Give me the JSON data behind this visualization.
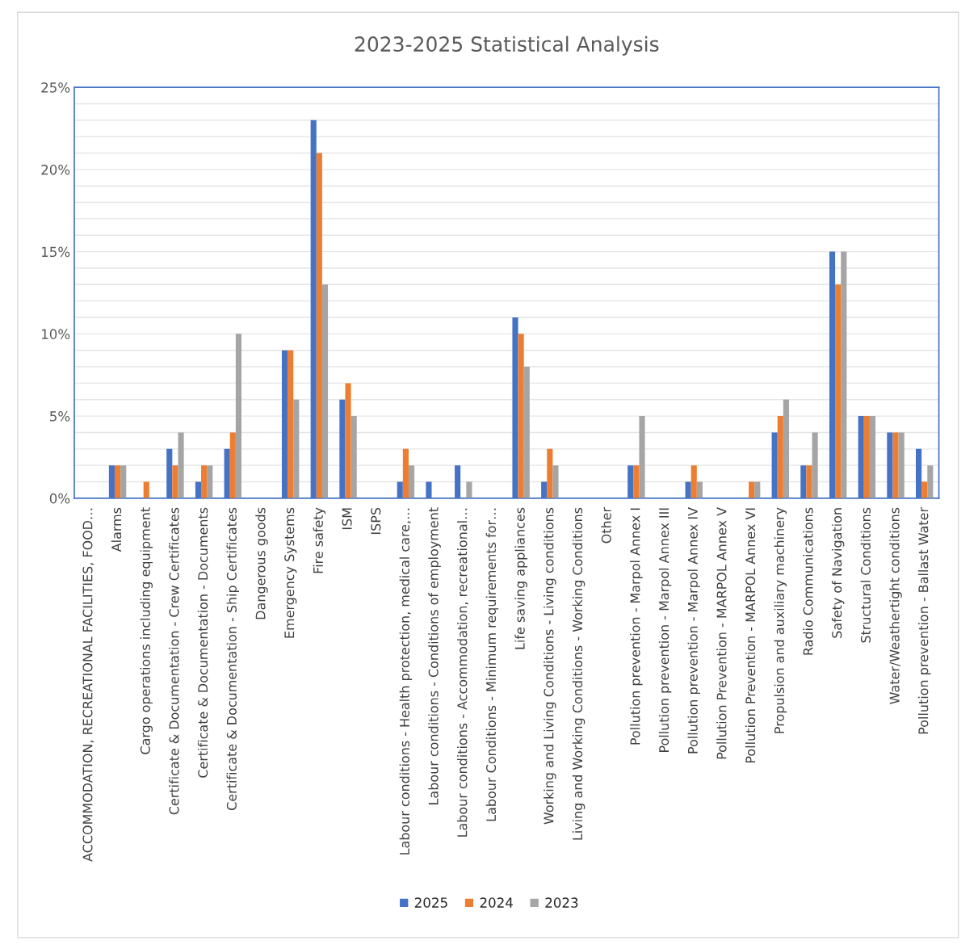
{
  "chart_data": {
    "type": "bar",
    "title": "2023-2025 Statistical Analysis",
    "categories": [
      "ACCOMMODATION, RECREATIONAL FACILITIES, FOOD…",
      "Alarms",
      "Cargo operations including equipment",
      "Certificate & Documentation - Crew Certificates",
      "Certificate & Documentation - Documents",
      "Certificate & Documentation - Ship Certificates",
      "Dangerous goods",
      "Emergency Systems",
      "Fire safety",
      "ISM",
      "ISPS",
      "Labour conditions - Health protection, medical care,…",
      "Labour conditions - Conditions of employment",
      "Labour conditions - Accommodation, recreational…",
      "Labour Conditions - Minimum requirements for…",
      "Life saving appliances",
      "Working and Living Conditions - Living conditions",
      "Living and Working Conditions - Working Conditions",
      "Other",
      "Pollution prevention - Marpol Annex I",
      "Pollution prevention - Marpol Annex III",
      "Pollution prevention - Marpol Annex IV",
      "Pollution Prevention - MARPOL Annex V",
      "Pollution Prevention - MARPOL Annex VI",
      "Propulsion and auxiliary machinery",
      "Radio Communications",
      "Safety of Navigation",
      "Structural Conditions",
      "Water/Weathertight conditions",
      "Pollution prevention - Ballast Water"
    ],
    "series": [
      {
        "name": "2025",
        "color": "#4472c4",
        "values": [
          0,
          2,
          0,
          3,
          1,
          3,
          0,
          9,
          23,
          6,
          0,
          1,
          1,
          2,
          0,
          11,
          1,
          0,
          0,
          2,
          0,
          1,
          0,
          0,
          4,
          2,
          15,
          5,
          4,
          3
        ]
      },
      {
        "name": "2024",
        "color": "#ed7d31",
        "values": [
          0,
          2,
          1,
          2,
          2,
          4,
          0,
          9,
          21,
          7,
          0,
          3,
          0,
          0,
          0,
          10,
          3,
          0,
          0,
          2,
          0,
          2,
          0,
          1,
          5,
          2,
          13,
          5,
          4,
          1
        ]
      },
      {
        "name": "2023",
        "color": "#a5a5a5",
        "values": [
          0,
          2,
          0,
          4,
          2,
          10,
          0,
          6,
          13,
          5,
          0,
          2,
          0,
          1,
          0,
          8,
          2,
          0,
          0,
          5,
          0,
          1,
          0,
          1,
          6,
          4,
          15,
          5,
          4,
          2
        ]
      }
    ],
    "ylim": [
      0,
      25
    ],
    "yticks": [
      {
        "value": 0,
        "label": "0%"
      },
      {
        "value": 1,
        "label": null
      },
      {
        "value": 2,
        "label": null
      },
      {
        "value": 3,
        "label": null
      },
      {
        "value": 4,
        "label": null
      },
      {
        "value": 5,
        "label": "5%"
      },
      {
        "value": 6,
        "label": null
      },
      {
        "value": 7,
        "label": null
      },
      {
        "value": 8,
        "label": null
      },
      {
        "value": 9,
        "label": null
      },
      {
        "value": 10,
        "label": "10%"
      },
      {
        "value": 11,
        "label": null
      },
      {
        "value": 12,
        "label": null
      },
      {
        "value": 13,
        "label": null
      },
      {
        "value": 14,
        "label": null
      },
      {
        "value": 15,
        "label": "15%"
      },
      {
        "value": 16,
        "label": null
      },
      {
        "value": 17,
        "label": null
      },
      {
        "value": 18,
        "label": null
      },
      {
        "value": 19,
        "label": null
      },
      {
        "value": 20,
        "label": "20%"
      },
      {
        "value": 21,
        "label": null
      },
      {
        "value": 22,
        "label": null
      },
      {
        "value": 23,
        "label": null
      },
      {
        "value": 24,
        "label": null
      },
      {
        "value": 25,
        "label": "25%"
      }
    ],
    "grid": "y",
    "legend": "bottom"
  }
}
